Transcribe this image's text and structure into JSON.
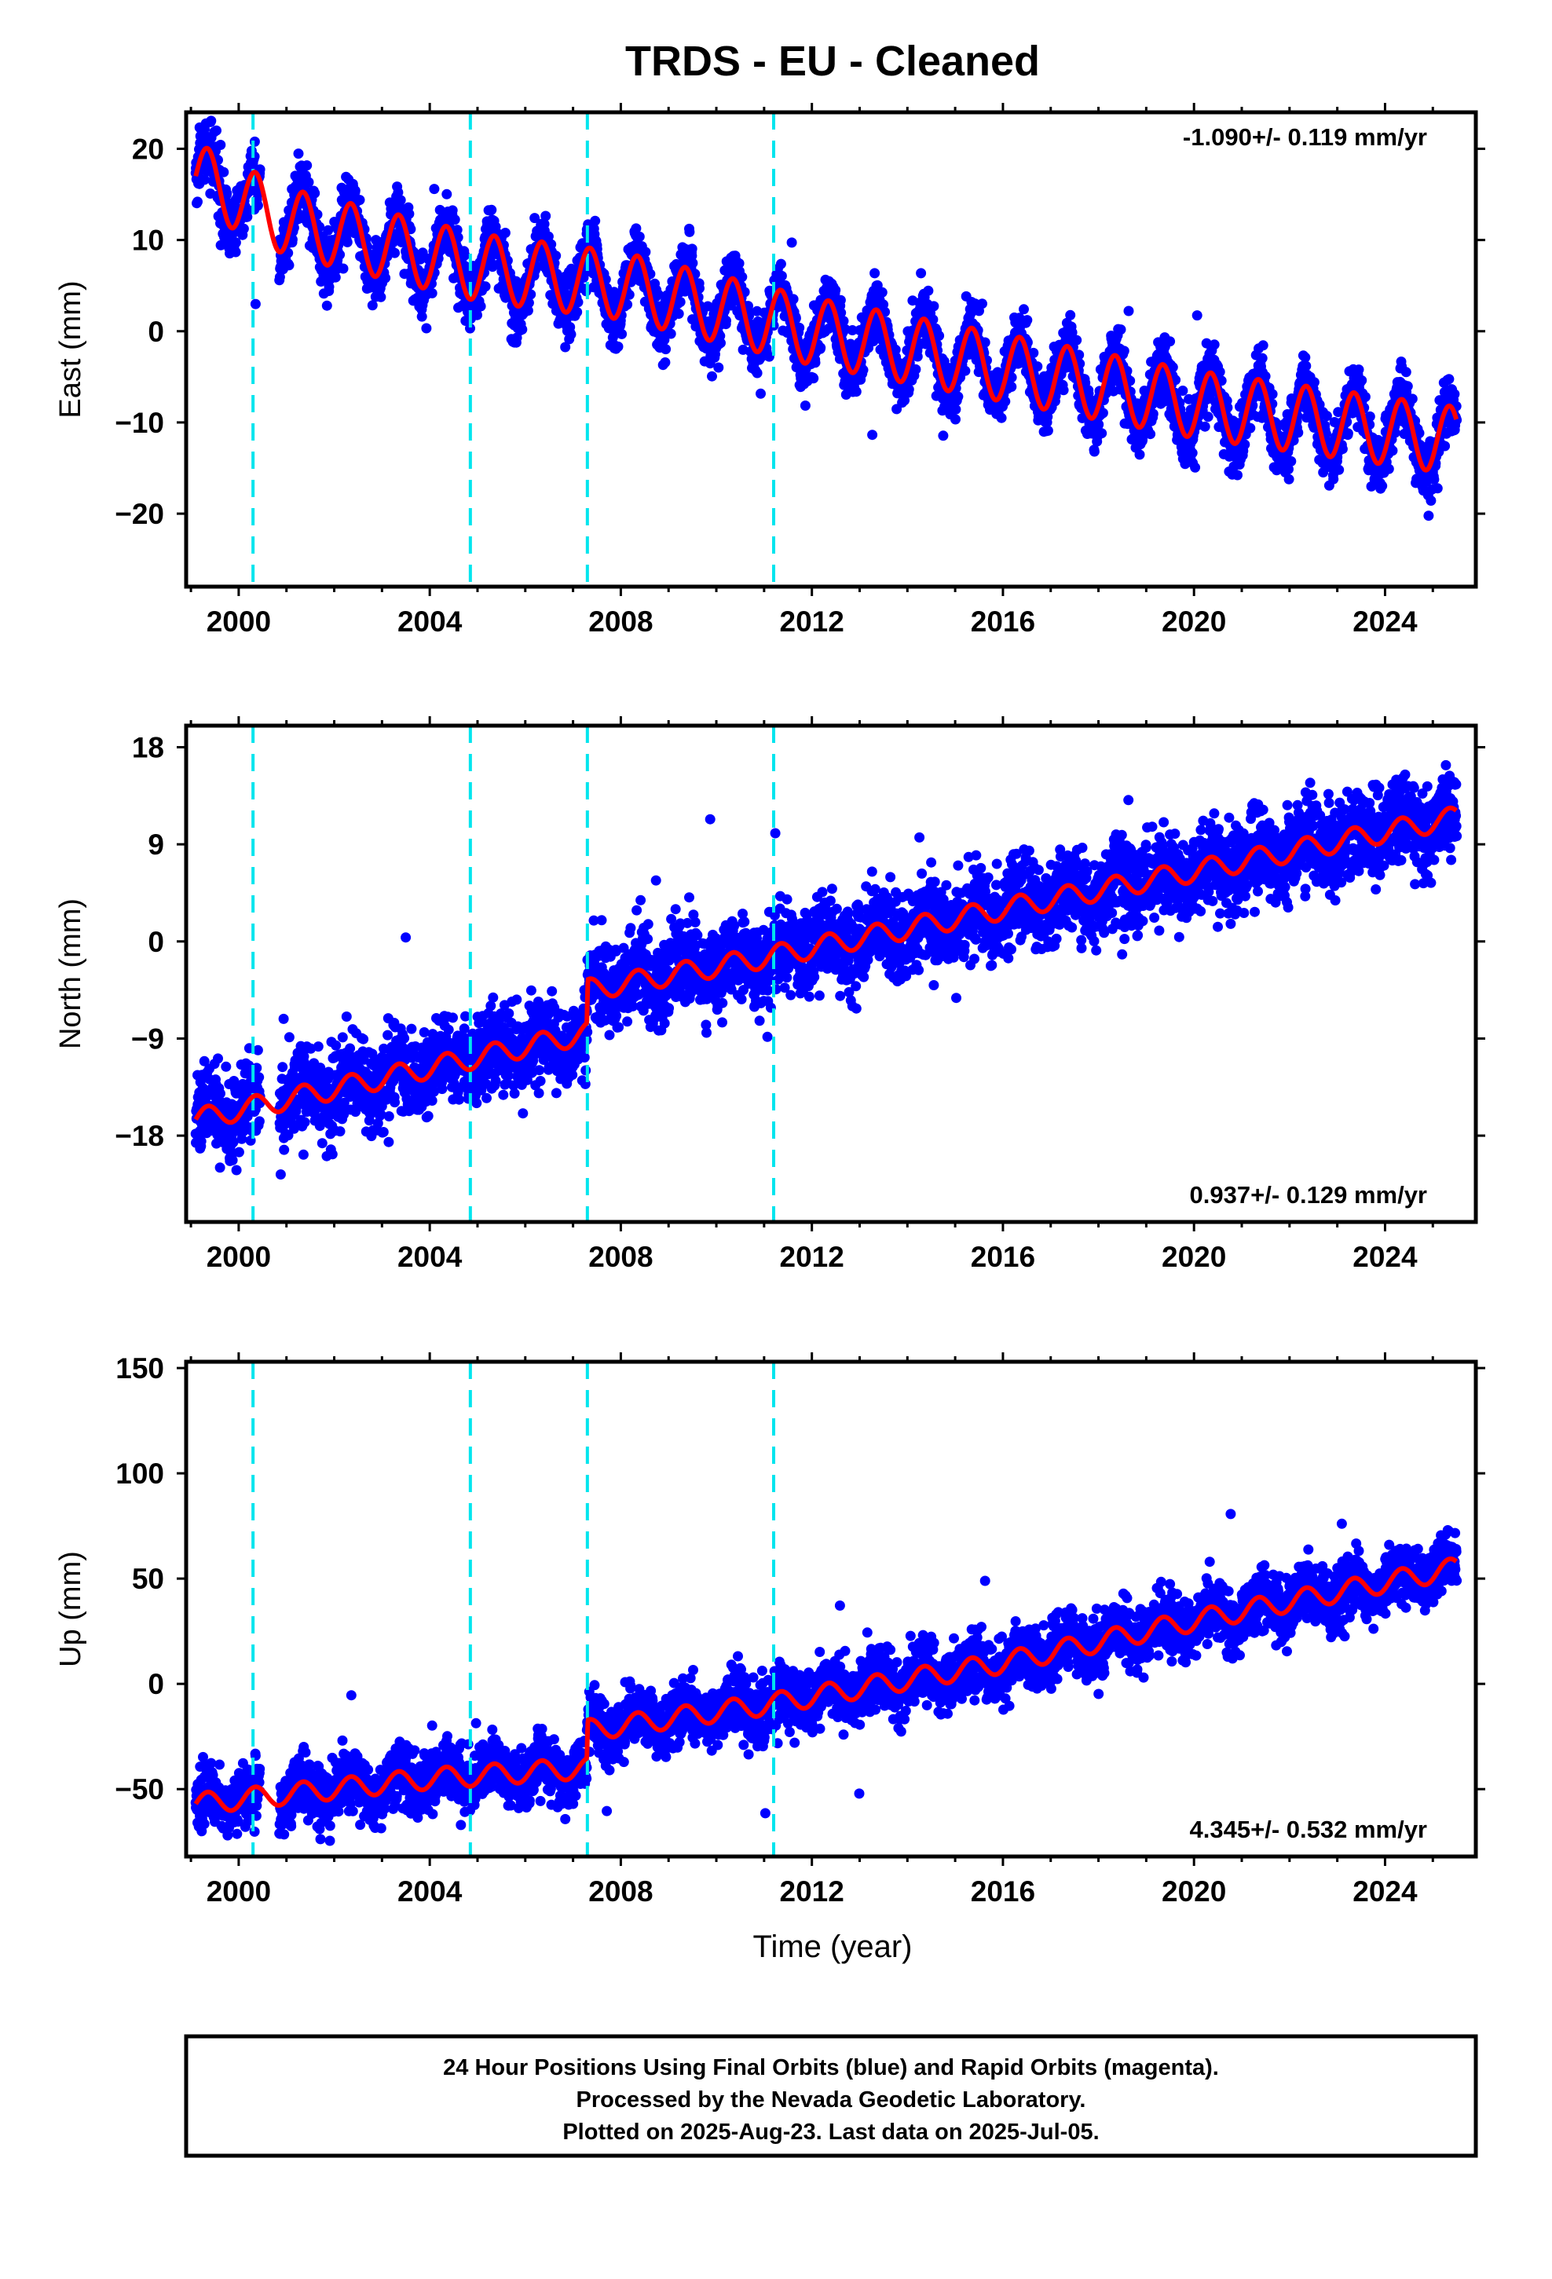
{
  "title": "TRDS  - EU - Cleaned",
  "x_axis_label": "Time (year)",
  "footer": [
    "24 Hour Positions Using Final Orbits (blue) and Rapid Orbits (magenta).",
    "Processed by the Nevada Geodetic Laboratory.",
    "Plotted on 2025-Aug-23. Last data on 2025-Jul-05."
  ],
  "colors": {
    "points": "#0000ff",
    "model": "#ff0000",
    "events": "#00e5ee",
    "frame": "#000000"
  },
  "chart_data": [
    {
      "type": "scatter",
      "title": "TRDS  - EU - Cleaned",
      "ylabel": "East (mm)",
      "xlabel": "",
      "xlim": [
        1998.9,
        2025.9
      ],
      "ylim": [
        -28,
        24
      ],
      "xticks": [
        "2000",
        "2004",
        "2008",
        "2012",
        "2016",
        "2020",
        "2024"
      ],
      "yticks": [
        "20",
        "10",
        "0",
        "−10",
        "−20"
      ],
      "ytick_values": [
        20,
        10,
        0,
        -10,
        -20
      ],
      "rate_label": "-1.090+/- 0.119 mm/yr",
      "rate_position": "top-right",
      "event_lines": [
        2000.3,
        2004.85,
        2007.3,
        2011.2
      ],
      "series": [
        {
          "kind": "observations",
          "x_range": [
            1999.1,
            2025.5
          ],
          "trend": [
            [
              1999.1,
              17
            ],
            [
              2001,
              12
            ],
            [
              2005,
              7
            ],
            [
              2008,
              5
            ],
            [
              2012,
              0
            ],
            [
              2016,
              -4
            ],
            [
              2020,
              -8
            ],
            [
              2025.5,
              -12
            ]
          ],
          "annual_amplitude": 3.7,
          "scatter": 1.6
        },
        {
          "kind": "model",
          "x_range": [
            1999.1,
            2025.5
          ],
          "trend": [
            [
              1999.1,
              17
            ],
            [
              2001,
              12
            ],
            [
              2005,
              7
            ],
            [
              2008,
              5
            ],
            [
              2012,
              0
            ],
            [
              2016,
              -4
            ],
            [
              2020,
              -8
            ],
            [
              2025.5,
              -12
            ]
          ],
          "annual_amplitude": 3.7
        }
      ]
    },
    {
      "type": "scatter",
      "ylabel": "North (mm)",
      "xlabel": "",
      "xlim": [
        1998.9,
        2025.9
      ],
      "ylim": [
        -26,
        20
      ],
      "xticks": [
        "2000",
        "2004",
        "2008",
        "2012",
        "2016",
        "2020",
        "2024"
      ],
      "yticks": [
        "18",
        "9",
        "0",
        "−9",
        "−18"
      ],
      "ytick_values": [
        18,
        9,
        0,
        -9,
        -18
      ],
      "rate_label": "0.937+/- 0.129 mm/yr",
      "rate_position": "bottom-right",
      "event_lines": [
        2000.3,
        2004.85,
        2007.3,
        2011.2
      ],
      "series": [
        {
          "kind": "observations",
          "x_range": [
            1999.1,
            2025.5
          ],
          "trend": [
            [
              1999.1,
              -16.5
            ],
            [
              2007.29,
              -8.5
            ],
            [
              2007.31,
              -4.5
            ],
            [
              2011,
              -1.5
            ],
            [
              2016,
              3
            ],
            [
              2020,
              6.5
            ],
            [
              2025.5,
              11.5
            ]
          ],
          "annual_amplitude": 1.0,
          "scatter": 1.9
        },
        {
          "kind": "model",
          "x_range": [
            1999.1,
            2025.5
          ],
          "trend": [
            [
              1999.1,
              -16.5
            ],
            [
              2007.29,
              -8.5
            ],
            [
              2007.31,
              -4.5
            ],
            [
              2011,
              -1.5
            ],
            [
              2016,
              3
            ],
            [
              2020,
              6.5
            ],
            [
              2025.5,
              11.5
            ]
          ],
          "annual_amplitude": 1.0
        }
      ]
    },
    {
      "type": "scatter",
      "ylabel": "Up (mm)",
      "xlabel": "Time (year)",
      "xlim": [
        1998.9,
        2025.9
      ],
      "ylim": [
        -82,
        153
      ],
      "xticks": [
        "2000",
        "2004",
        "2008",
        "2012",
        "2016",
        "2020",
        "2024"
      ],
      "yticks": [
        "150",
        "100",
        "50",
        "0",
        "−50"
      ],
      "ytick_values": [
        150,
        100,
        50,
        0,
        -50
      ],
      "rate_label": "4.345+/- 0.532 mm/yr",
      "rate_position": "bottom-right",
      "event_lines": [
        2000.3,
        2004.85,
        2007.3,
        2011.2
      ],
      "series": [
        {
          "kind": "observations",
          "x_range": [
            1999.1,
            2025.5
          ],
          "trend": [
            [
              1999.1,
              -57
            ],
            [
              2004,
              -45
            ],
            [
              2007.29,
              -40
            ],
            [
              2007.31,
              -22
            ],
            [
              2011,
              -10
            ],
            [
              2016,
              10
            ],
            [
              2020,
              30
            ],
            [
              2025.5,
              55
            ]
          ],
          "annual_amplitude": 5,
          "scatter": 7
        },
        {
          "kind": "model",
          "x_range": [
            1999.1,
            2025.5
          ],
          "trend": [
            [
              1999.1,
              -57
            ],
            [
              2004,
              -45
            ],
            [
              2007.29,
              -40
            ],
            [
              2007.31,
              -22
            ],
            [
              2011,
              -10
            ],
            [
              2016,
              10
            ],
            [
              2020,
              30
            ],
            [
              2025.5,
              55
            ]
          ],
          "annual_amplitude": 5
        }
      ]
    }
  ]
}
